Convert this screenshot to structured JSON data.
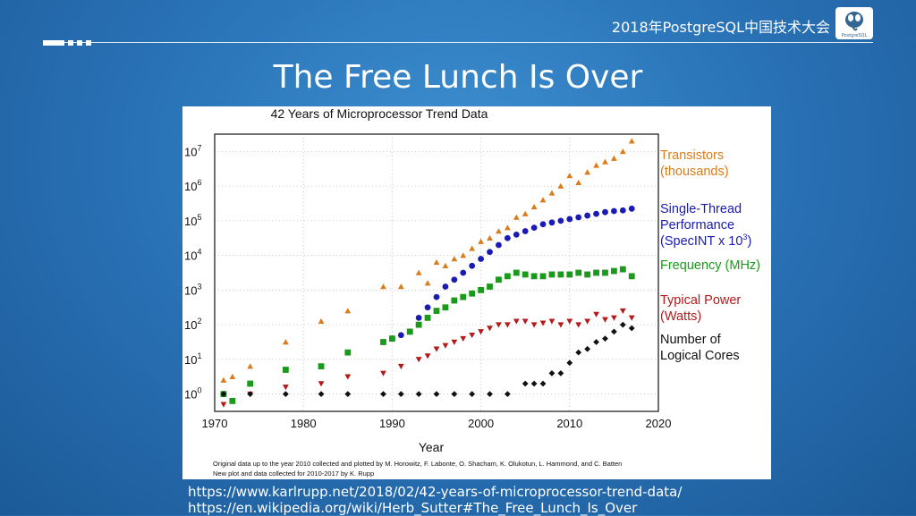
{
  "header": {
    "conference_title": "2018年PostgreSQL中国技术大会",
    "logo_label": "PostgreSQL"
  },
  "slide": {
    "title": "The Free Lunch Is Over",
    "links": [
      "https://www.karlrupp.net/2018/02/42-years-of-microprocessor-trend-data/",
      "https://en.wikipedia.org/wiki/Herb_Sutter#The_Free_Lunch_Is_Over"
    ]
  },
  "colors": {
    "transistors": "#d97c1a",
    "single_thread": "#1a1ab5",
    "frequency": "#1a9a1a",
    "power": "#b51a1a",
    "cores": "#111111"
  },
  "chart_data": {
    "type": "scatter",
    "title": "42 Years of Microprocessor Trend Data",
    "xlabel": "Year",
    "ylabel": "",
    "xlim": [
      1970,
      2020
    ],
    "x_ticks": [
      "1970",
      "1980",
      "1990",
      "2000",
      "2010",
      "2020"
    ],
    "y_scale": "log",
    "ylim_exponents": [
      -0.5,
      7.5
    ],
    "y_ticks": [
      {
        "base": "10",
        "exp": "0"
      },
      {
        "base": "10",
        "exp": "1"
      },
      {
        "base": "10",
        "exp": "2"
      },
      {
        "base": "10",
        "exp": "3"
      },
      {
        "base": "10",
        "exp": "4"
      },
      {
        "base": "10",
        "exp": "5"
      },
      {
        "base": "10",
        "exp": "6"
      },
      {
        "base": "10",
        "exp": "7"
      }
    ],
    "grid": true,
    "footnote": [
      "Original data up to the year 2010 collected and plotted by M. Horowitz, F. Labonte, O. Shacham, K. Olukotun, L. Hammond, and C. Batten",
      "New plot and data collected for 2010-2017 by K. Rupp"
    ],
    "series": [
      {
        "name": "Transistors (thousands)",
        "legend_lines": [
          "Transistors",
          "(thousands)"
        ],
        "marker": "triangle",
        "color_key": "transistors",
        "points": [
          [
            1971,
            0.4
          ],
          [
            1972,
            0.5
          ],
          [
            1974,
            0.8
          ],
          [
            1978,
            1.5
          ],
          [
            1982,
            2.1
          ],
          [
            1985,
            2.4
          ],
          [
            1989,
            3.1
          ],
          [
            1991,
            3.1
          ],
          [
            1993,
            3.5
          ],
          [
            1994,
            3.2
          ],
          [
            1995,
            3.8
          ],
          [
            1996,
            3.7
          ],
          [
            1997,
            3.9
          ],
          [
            1998,
            4.0
          ],
          [
            1999,
            4.2
          ],
          [
            2000,
            4.4
          ],
          [
            2001,
            4.5
          ],
          [
            2002,
            4.7
          ],
          [
            2003,
            4.8
          ],
          [
            2004,
            5.1
          ],
          [
            2005,
            5.2
          ],
          [
            2006,
            5.4
          ],
          [
            2007,
            5.6
          ],
          [
            2008,
            5.8
          ],
          [
            2009,
            6.0
          ],
          [
            2010,
            6.3
          ],
          [
            2011,
            6.1
          ],
          [
            2012,
            6.4
          ],
          [
            2013,
            6.6
          ],
          [
            2014,
            6.7
          ],
          [
            2015,
            6.8
          ],
          [
            2016,
            7.0
          ],
          [
            2017,
            7.3
          ]
        ]
      },
      {
        "name": "Single-Thread Performance (SpecINT x 10^3)",
        "legend_lines": [
          "Single-Thread",
          "Performance",
          "(SpecINT x 10",
          "3",
          ")"
        ],
        "marker": "circle",
        "color_key": "single_thread",
        "points": [
          [
            1990,
            1.6
          ],
          [
            1991,
            1.7
          ],
          [
            1992,
            1.8
          ],
          [
            1993,
            2.2
          ],
          [
            1994,
            2.5
          ],
          [
            1995,
            2.8
          ],
          [
            1996,
            3.1
          ],
          [
            1997,
            3.3
          ],
          [
            1998,
            3.5
          ],
          [
            1999,
            3.7
          ],
          [
            2000,
            3.9
          ],
          [
            2001,
            4.1
          ],
          [
            2002,
            4.3
          ],
          [
            2003,
            4.5
          ],
          [
            2004,
            4.6
          ],
          [
            2005,
            4.7
          ],
          [
            2006,
            4.8
          ],
          [
            2007,
            4.9
          ],
          [
            2008,
            4.95
          ],
          [
            2009,
            5.0
          ],
          [
            2010,
            5.05
          ],
          [
            2011,
            5.1
          ],
          [
            2012,
            5.15
          ],
          [
            2013,
            5.2
          ],
          [
            2014,
            5.25
          ],
          [
            2015,
            5.28
          ],
          [
            2016,
            5.3
          ],
          [
            2017,
            5.35
          ]
        ]
      },
      {
        "name": "Frequency (MHz)",
        "legend_lines": [
          "Frequency (MHz)"
        ],
        "marker": "square",
        "color_key": "frequency",
        "points": [
          [
            1971,
            0.0
          ],
          [
            1972,
            -0.2
          ],
          [
            1974,
            0.3
          ],
          [
            1978,
            0.7
          ],
          [
            1982,
            0.8
          ],
          [
            1985,
            1.2
          ],
          [
            1989,
            1.5
          ],
          [
            1990,
            1.6
          ],
          [
            1992,
            1.8
          ],
          [
            1993,
            2.0
          ],
          [
            1994,
            2.2
          ],
          [
            1995,
            2.4
          ],
          [
            1996,
            2.5
          ],
          [
            1997,
            2.7
          ],
          [
            1998,
            2.8
          ],
          [
            1999,
            2.9
          ],
          [
            2000,
            3.0
          ],
          [
            2001,
            3.1
          ],
          [
            2002,
            3.3
          ],
          [
            2003,
            3.4
          ],
          [
            2004,
            3.5
          ],
          [
            2005,
            3.45
          ],
          [
            2006,
            3.4
          ],
          [
            2007,
            3.4
          ],
          [
            2008,
            3.45
          ],
          [
            2009,
            3.45
          ],
          [
            2010,
            3.45
          ],
          [
            2011,
            3.5
          ],
          [
            2012,
            3.45
          ],
          [
            2013,
            3.5
          ],
          [
            2014,
            3.5
          ],
          [
            2015,
            3.55
          ],
          [
            2016,
            3.6
          ],
          [
            2017,
            3.4
          ]
        ]
      },
      {
        "name": "Typical Power (Watts)",
        "legend_lines": [
          "Typical Power",
          "(Watts)"
        ],
        "marker": "triangle-down",
        "color_key": "power",
        "points": [
          [
            1971,
            -0.3
          ],
          [
            1974,
            0.0
          ],
          [
            1978,
            0.2
          ],
          [
            1982,
            0.3
          ],
          [
            1985,
            0.5
          ],
          [
            1989,
            0.6
          ],
          [
            1991,
            0.8
          ],
          [
            1993,
            1.0
          ],
          [
            1994,
            1.1
          ],
          [
            1995,
            1.3
          ],
          [
            1996,
            1.4
          ],
          [
            1997,
            1.5
          ],
          [
            1998,
            1.6
          ],
          [
            1999,
            1.7
          ],
          [
            2000,
            1.8
          ],
          [
            2001,
            1.9
          ],
          [
            2002,
            2.0
          ],
          [
            2003,
            2.0
          ],
          [
            2004,
            2.1
          ],
          [
            2005,
            2.1
          ],
          [
            2006,
            2.0
          ],
          [
            2007,
            2.05
          ],
          [
            2008,
            2.1
          ],
          [
            2009,
            2.0
          ],
          [
            2010,
            2.1
          ],
          [
            2011,
            2.0
          ],
          [
            2012,
            2.1
          ],
          [
            2013,
            2.3
          ],
          [
            2014,
            2.15
          ],
          [
            2015,
            2.2
          ],
          [
            2016,
            2.4
          ],
          [
            2017,
            2.2
          ]
        ]
      },
      {
        "name": "Number of Logical Cores",
        "legend_lines": [
          "Number of",
          "Logical Cores"
        ],
        "marker": "diamond",
        "color_key": "cores",
        "points": [
          [
            1971,
            0
          ],
          [
            1974,
            0
          ],
          [
            1978,
            0
          ],
          [
            1982,
            0
          ],
          [
            1985,
            0
          ],
          [
            1989,
            0
          ],
          [
            1991,
            0
          ],
          [
            1993,
            0
          ],
          [
            1995,
            0
          ],
          [
            1997,
            0
          ],
          [
            1999,
            0
          ],
          [
            2001,
            0
          ],
          [
            2003,
            0
          ],
          [
            2005,
            0.3
          ],
          [
            2006,
            0.3
          ],
          [
            2007,
            0.3
          ],
          [
            2008,
            0.6
          ],
          [
            2009,
            0.6
          ],
          [
            2010,
            0.9
          ],
          [
            2011,
            1.2
          ],
          [
            2012,
            1.3
          ],
          [
            2013,
            1.5
          ],
          [
            2014,
            1.6
          ],
          [
            2015,
            1.8
          ],
          [
            2016,
            2.0
          ],
          [
            2017,
            1.9
          ]
        ]
      }
    ]
  }
}
